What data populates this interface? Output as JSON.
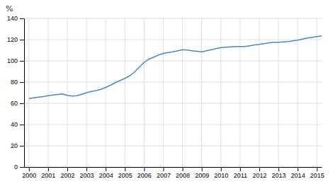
{
  "chart_data": {
    "type": "line",
    "ylabel": "%",
    "color": "#4a8abf",
    "grid": true,
    "xlim": [
      1999.75,
      2015.25
    ],
    "ylim": [
      0,
      140
    ],
    "xticks": [
      2000,
      2001,
      2002,
      2003,
      2004,
      2005,
      2006,
      2007,
      2008,
      2009,
      2010,
      2011,
      2012,
      2013,
      2014,
      2015
    ],
    "yticks": [
      0,
      20,
      40,
      60,
      80,
      100,
      120,
      140
    ],
    "x": [
      2000.0,
      2000.25,
      2000.5,
      2000.75,
      2001.0,
      2001.25,
      2001.5,
      2001.75,
      2002.0,
      2002.25,
      2002.5,
      2002.75,
      2003.0,
      2003.25,
      2003.5,
      2003.75,
      2004.0,
      2004.25,
      2004.5,
      2004.75,
      2005.0,
      2005.25,
      2005.5,
      2005.75,
      2006.0,
      2006.25,
      2006.5,
      2006.75,
      2007.0,
      2007.25,
      2007.5,
      2007.75,
      2008.0,
      2008.25,
      2008.5,
      2008.75,
      2009.0,
      2009.25,
      2009.5,
      2009.75,
      2010.0,
      2010.25,
      2010.5,
      2010.75,
      2011.0,
      2011.25,
      2011.5,
      2011.75,
      2012.0,
      2012.25,
      2012.5,
      2012.75,
      2013.0,
      2013.25,
      2013.5,
      2013.75,
      2014.0,
      2014.25,
      2014.5,
      2014.75,
      2015.0,
      2015.25
    ],
    "values": [
      64.5,
      65.2,
      65.8,
      66.3,
      67.2,
      67.8,
      68.3,
      68.8,
      67.5,
      66.8,
      67.2,
      68.5,
      70.0,
      71.2,
      72.0,
      73.2,
      75.0,
      77.0,
      79.5,
      81.5,
      83.5,
      86.0,
      89.5,
      94.0,
      98.5,
      101.5,
      103.5,
      105.5,
      107.0,
      107.8,
      108.5,
      109.5,
      110.5,
      110.2,
      109.5,
      109.0,
      108.5,
      109.5,
      110.5,
      111.5,
      112.5,
      112.8,
      113.2,
      113.5,
      113.5,
      113.5,
      114.2,
      115.0,
      115.5,
      116.2,
      117.0,
      117.5,
      117.5,
      117.8,
      118.2,
      118.8,
      119.5,
      120.5,
      121.5,
      122.2,
      122.8,
      123.5
    ]
  }
}
